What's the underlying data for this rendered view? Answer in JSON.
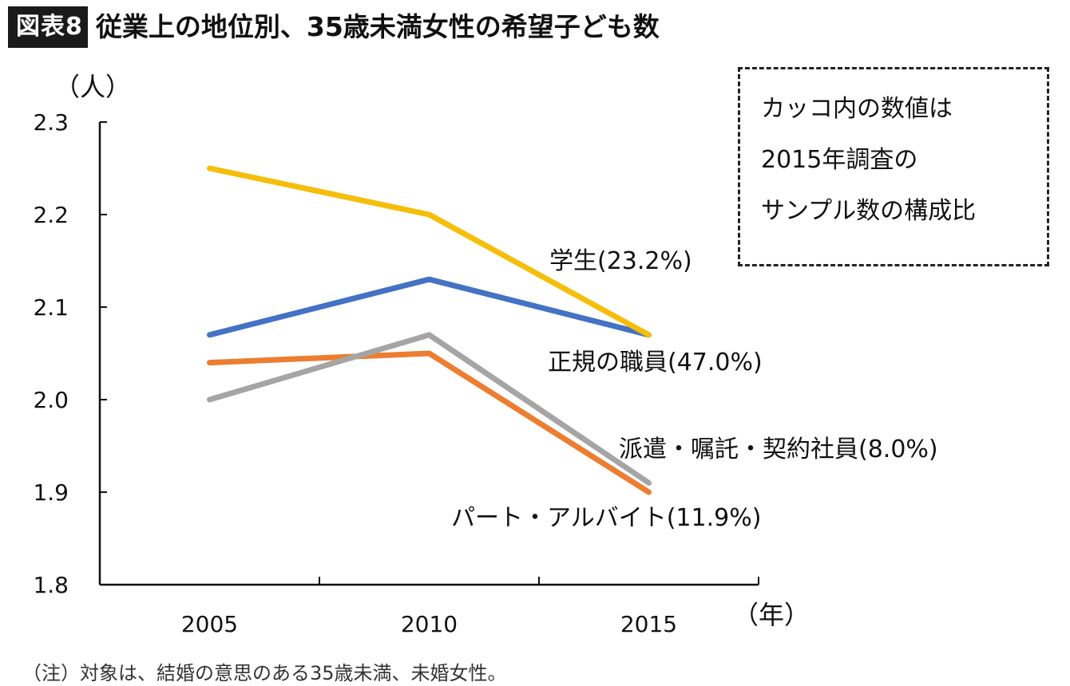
{
  "header": {
    "badge": "図表8",
    "title": "従業上の地位別、35歳未満女性の希望子ども数"
  },
  "note_box": {
    "lines": [
      "カッコ内の数値は",
      "2015年調査の",
      "サンプル数の構成比"
    ]
  },
  "footnote": "（注）対象は、結婚の意思のある35歳未満、未婚女性。",
  "chart_data": {
    "type": "line",
    "y_unit_label": "（人）",
    "x_unit_label": "（年）",
    "categories": [
      "2005",
      "2010",
      "2015"
    ],
    "ylim": [
      1.8,
      2.3
    ],
    "yticks": [
      "1.8",
      "1.9",
      "2.0",
      "2.1",
      "2.2",
      "2.3"
    ],
    "grid": false,
    "series": [
      {
        "name": "学生(23.2%)",
        "color": "#F5BE0B",
        "values": [
          2.25,
          2.2,
          2.07
        ]
      },
      {
        "name": "正規の職員(47.0%)",
        "color": "#4472C4",
        "values": [
          2.07,
          2.13,
          2.07
        ]
      },
      {
        "name": "派遣・嘱託・契約社員(8.0%)",
        "color": "#A5A5A5",
        "values": [
          2.0,
          2.07,
          1.91
        ]
      },
      {
        "name": "パート・アルバイト(11.9%)",
        "color": "#ED7D31",
        "values": [
          2.04,
          2.05,
          1.9
        ]
      }
    ]
  }
}
